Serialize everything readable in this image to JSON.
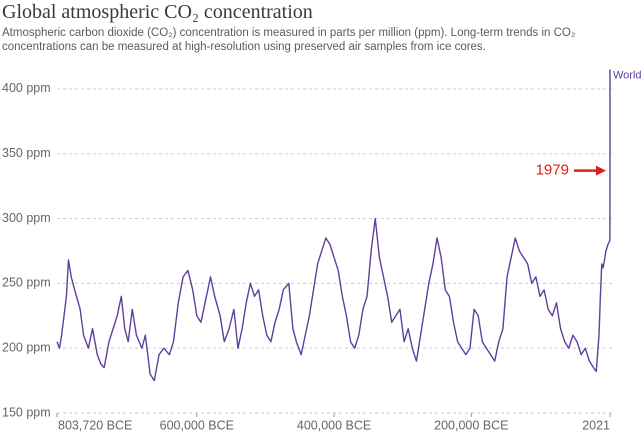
{
  "chart_data": {
    "type": "line",
    "title": "Global atmospheric CO₂ concentration",
    "subtitle": "Atmospheric carbon dioxide (CO₂) concentration is measured in parts per million (ppm). Long-term trends in CO₂ concentrations can be measured at high-resolution using preserved air samples from ice cores.",
    "annotation": {
      "text": "1979",
      "x": 1979,
      "color": "#e0201b"
    },
    "x": [
      -803720,
      -800000,
      -797000,
      -790000,
      -787000,
      -783000,
      -778000,
      -770000,
      -765000,
      -758000,
      -752000,
      -745000,
      -740000,
      -735000,
      -728000,
      -722000,
      -716000,
      -710000,
      -705000,
      -700000,
      -694000,
      -688000,
      -680000,
      -675000,
      -668000,
      -662000,
      -655000,
      -648000,
      -640000,
      -634000,
      -627000,
      -620000,
      -613000,
      -606000,
      -600000,
      -594000,
      -588000,
      -580000,
      -574000,
      -566000,
      -560000,
      -553000,
      -546000,
      -540000,
      -534000,
      -528000,
      -522000,
      -516000,
      -510000,
      -504000,
      -498000,
      -492000,
      -486000,
      -480000,
      -474000,
      -466000,
      -460000,
      -455000,
      -448000,
      -442000,
      -436000,
      -430000,
      -424000,
      -418000,
      -412000,
      -406000,
      -400000,
      -394000,
      -388000,
      -382000,
      -376000,
      -370000,
      -364000,
      -358000,
      -352000,
      -346000,
      -340000,
      -334000,
      -328000,
      -322000,
      -316000,
      -310000,
      -304000,
      -298000,
      -292000,
      -286000,
      -280000,
      -274000,
      -268000,
      -262000,
      -256000,
      -250000,
      -244000,
      -238000,
      -232000,
      -226000,
      -220000,
      -214000,
      -208000,
      -202000,
      -196000,
      -190000,
      -184000,
      -178000,
      -172000,
      -166000,
      -160000,
      -154000,
      -148000,
      -142000,
      -136000,
      -130000,
      -124000,
      -118000,
      -112000,
      -106000,
      -100000,
      -94000,
      -88000,
      -82000,
      -76000,
      -70000,
      -64000,
      -58000,
      -52000,
      -46000,
      -40000,
      -34000,
      -28000,
      -22000,
      -18000,
      -14000,
      -12000,
      -10000,
      -8000,
      -6000,
      -4000,
      -2000,
      -1000,
      1800,
      1900,
      1950,
      1979,
      2000,
      2010,
      2021
    ],
    "series": [
      {
        "name": "World",
        "color": "#5e3f9e",
        "values": [
          205,
          200,
          210,
          240,
          268,
          255,
          245,
          230,
          210,
          200,
          215,
          195,
          188,
          185,
          205,
          215,
          225,
          240,
          215,
          205,
          230,
          210,
          200,
          210,
          180,
          175,
          195,
          200,
          195,
          205,
          235,
          255,
          260,
          245,
          225,
          220,
          235,
          255,
          240,
          225,
          205,
          215,
          230,
          200,
          215,
          235,
          250,
          240,
          245,
          225,
          210,
          205,
          220,
          230,
          245,
          250,
          215,
          205,
          195,
          210,
          225,
          245,
          265,
          275,
          285,
          280,
          270,
          260,
          240,
          225,
          205,
          200,
          210,
          230,
          240,
          275,
          300,
          270,
          255,
          240,
          220,
          225,
          230,
          205,
          215,
          200,
          190,
          210,
          230,
          250,
          265,
          285,
          270,
          245,
          240,
          220,
          205,
          200,
          195,
          200,
          230,
          225,
          205,
          200,
          195,
          190,
          205,
          215,
          255,
          270,
          285,
          275,
          270,
          265,
          250,
          255,
          240,
          245,
          230,
          225,
          235,
          215,
          205,
          200,
          210,
          205,
          195,
          200,
          190,
          185,
          182,
          210,
          240,
          265,
          262,
          268,
          275,
          278,
          280,
          283,
          296,
          311,
          337,
          369,
          389,
          415
        ]
      }
    ],
    "xlim": [
      -803720,
      2021
    ],
    "xticks": [
      {
        "value": -803720,
        "label": "803,720 BCE"
      },
      {
        "value": -600000,
        "label": "600,000 BCE"
      },
      {
        "value": -400000,
        "label": "400,000 BCE"
      },
      {
        "value": -200000,
        "label": "200,000 BCE"
      },
      2021
    ],
    "ylim": [
      150,
      420
    ],
    "yticks": [
      {
        "value": 150,
        "label": "150 ppm"
      },
      {
        "value": 200,
        "label": "200 ppm"
      },
      {
        "value": 250,
        "label": "250 ppm"
      },
      {
        "value": 300,
        "label": "300 ppm"
      },
      {
        "value": 350,
        "label": "350 ppm"
      },
      {
        "value": 400,
        "label": "400 ppm"
      }
    ],
    "grid": true
  }
}
